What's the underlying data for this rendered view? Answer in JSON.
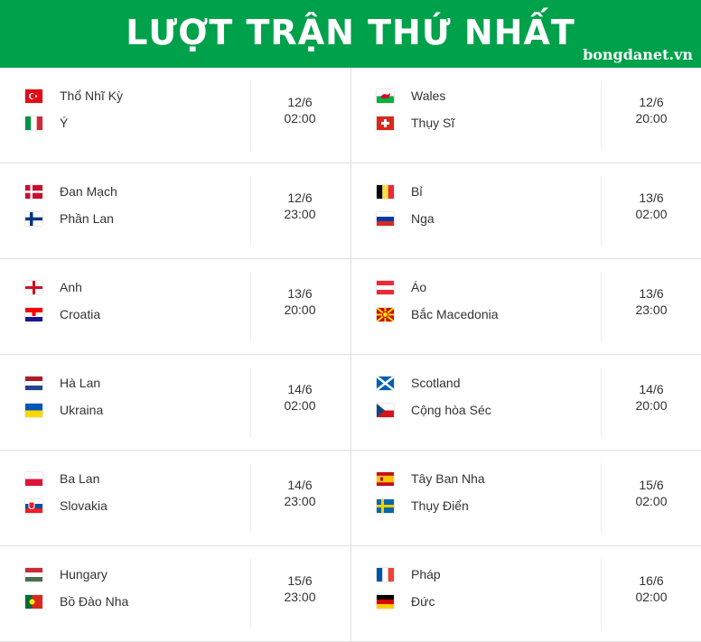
{
  "header": {
    "title": "LƯỢT TRẬN THỨ NHẤT",
    "brand": "bongdanet.vn",
    "color": "#00a14b"
  },
  "matches": [
    {
      "home": "Thổ Nhĩ Kỳ",
      "home_flag": "turkey",
      "away": "Ý",
      "away_flag": "italy",
      "date": "12/6",
      "time": "02:00"
    },
    {
      "home": "Wales",
      "home_flag": "wales",
      "away": "Thụy Sĩ",
      "away_flag": "switzerland",
      "date": "12/6",
      "time": "20:00"
    },
    {
      "home": "Đan Mạch",
      "home_flag": "denmark",
      "away": "Phần Lan",
      "away_flag": "finland",
      "date": "12/6",
      "time": "23:00"
    },
    {
      "home": "Bỉ",
      "home_flag": "belgium",
      "away": "Nga",
      "away_flag": "russia",
      "date": "13/6",
      "time": "02:00"
    },
    {
      "home": "Anh",
      "home_flag": "england",
      "away": "Croatia",
      "away_flag": "croatia",
      "date": "13/6",
      "time": "20:00"
    },
    {
      "home": "Áo",
      "home_flag": "austria",
      "away": "Bắc Macedonia",
      "away_flag": "north-macedonia",
      "date": "13/6",
      "time": "23:00"
    },
    {
      "home": "Hà Lan",
      "home_flag": "netherlands",
      "away": "Ukraina",
      "away_flag": "ukraine",
      "date": "14/6",
      "time": "02:00"
    },
    {
      "home": "Scotland",
      "home_flag": "scotland",
      "away": "Cộng hòa Séc",
      "away_flag": "czech",
      "date": "14/6",
      "time": "20:00"
    },
    {
      "home": "Ba Lan",
      "home_flag": "poland",
      "away": "Slovakia",
      "away_flag": "slovakia",
      "date": "14/6",
      "time": "23:00"
    },
    {
      "home": "Tây Ban Nha",
      "home_flag": "spain",
      "away": "Thụy Điển",
      "away_flag": "sweden",
      "date": "15/6",
      "time": "02:00"
    },
    {
      "home": "Hungary",
      "home_flag": "hungary",
      "away": "Bồ Đào Nha",
      "away_flag": "portugal",
      "date": "15/6",
      "time": "23:00"
    },
    {
      "home": "Pháp",
      "home_flag": "france",
      "away": "Đức",
      "away_flag": "germany",
      "date": "16/6",
      "time": "02:00"
    }
  ]
}
